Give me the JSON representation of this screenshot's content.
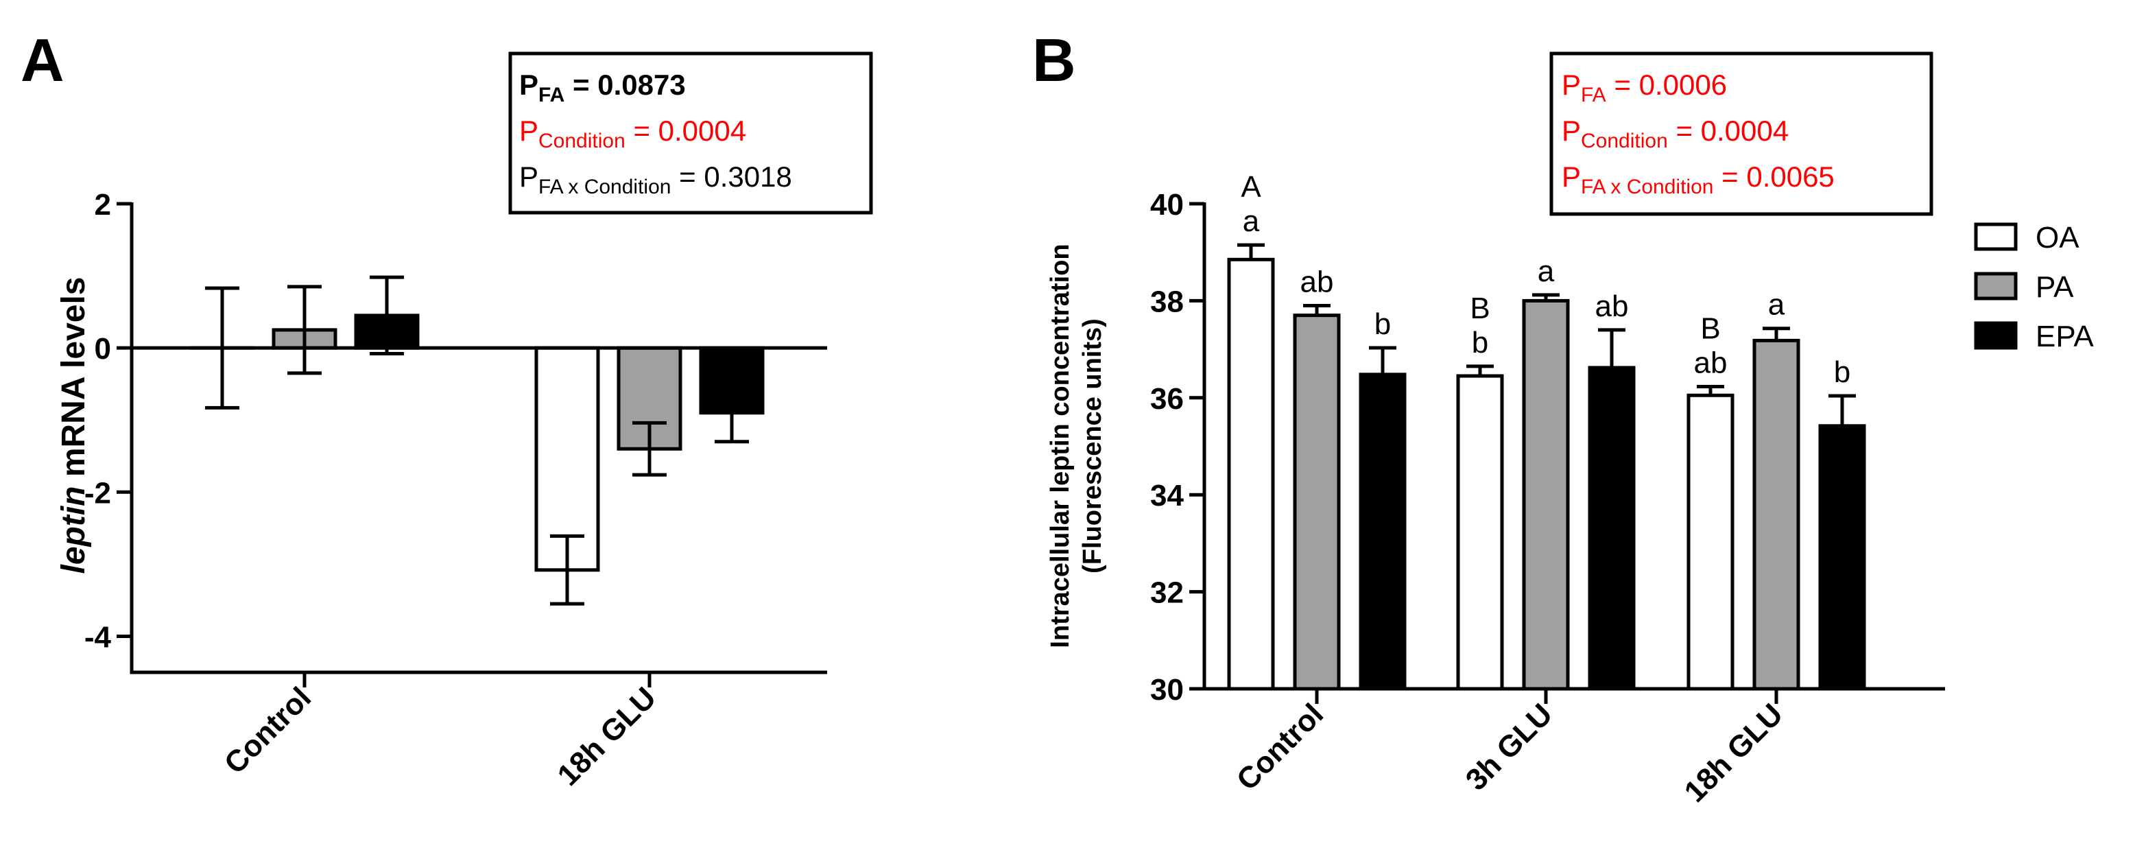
{
  "colors": {
    "OA": "#ffffff",
    "PA": "#a0a0a2",
    "EPA": "#000000",
    "axis": "#000000",
    "significant": "#ff0000",
    "nonsignificant": "#000000"
  },
  "legend": {
    "items": [
      {
        "name": "OA",
        "label": "OA"
      },
      {
        "name": "PA",
        "label": "PA"
      },
      {
        "name": "EPA",
        "label": "EPA"
      }
    ],
    "position": "right"
  },
  "chart_data": [
    {
      "panel": "A",
      "type": "bar",
      "title": "",
      "ylabel_italic": "leptin",
      "ylabel_rest": " mRNA levels",
      "xlabel": "",
      "ylim": [
        -4.5,
        2
      ],
      "yticks": [
        2,
        0,
        -2,
        -4
      ],
      "ytick_labels": [
        "2",
        "0",
        "-2",
        "-4"
      ],
      "categories": [
        "Control",
        "18h GLU"
      ],
      "series": [
        {
          "name": "OA",
          "values": [
            0.0,
            -3.08
          ],
          "errors": [
            0.83,
            0.47
          ]
        },
        {
          "name": "PA",
          "values": [
            0.25,
            -1.4
          ],
          "errors": [
            0.6,
            0.36
          ]
        },
        {
          "name": "EPA",
          "values": [
            0.45,
            -0.9
          ],
          "errors": [
            0.53,
            0.4
          ]
        }
      ],
      "stats": [
        {
          "p": "P",
          "sub": "FA",
          "value": " = 0.0873",
          "bold": true,
          "significant": false
        },
        {
          "p": "P",
          "sub": "Condition",
          "value": " = 0.0004",
          "bold": false,
          "significant": true
        },
        {
          "p": "P",
          "sub": "FA x Condition",
          "value": " = 0.3018",
          "bold": false,
          "significant": false
        }
      ]
    },
    {
      "panel": "B",
      "type": "bar",
      "title": "",
      "ylabel_line1": "Intracellular leptin concentration",
      "ylabel_line2": "(Fluorescence units)",
      "xlabel": "",
      "ylim": [
        30,
        40
      ],
      "yticks": [
        30,
        32,
        34,
        36,
        38,
        40
      ],
      "ytick_labels": [
        "30",
        "32",
        "34",
        "36",
        "38",
        "40"
      ],
      "categories": [
        "Control",
        "3h GLU",
        "18h GLU"
      ],
      "series": [
        {
          "name": "OA",
          "values": [
            38.85,
            36.45,
            36.05
          ],
          "errors": [
            0.3,
            0.2,
            0.18
          ]
        },
        {
          "name": "PA",
          "values": [
            37.7,
            38.0,
            37.18
          ],
          "errors": [
            0.2,
            0.12,
            0.25
          ]
        },
        {
          "name": "EPA",
          "values": [
            36.48,
            36.62,
            35.42
          ],
          "errors": [
            0.55,
            0.78,
            0.62
          ]
        }
      ],
      "letters": [
        {
          "category": 0,
          "series": 0,
          "upper": "A",
          "lower": "a"
        },
        {
          "category": 0,
          "series": 1,
          "upper": "",
          "lower": "ab"
        },
        {
          "category": 0,
          "series": 2,
          "upper": "",
          "lower": "b"
        },
        {
          "category": 1,
          "series": 0,
          "upper": "B",
          "lower": "b"
        },
        {
          "category": 1,
          "series": 1,
          "upper": "",
          "lower": "a"
        },
        {
          "category": 1,
          "series": 2,
          "upper": "",
          "lower": "ab"
        },
        {
          "category": 2,
          "series": 0,
          "upper": "B",
          "lower": "ab"
        },
        {
          "category": 2,
          "series": 1,
          "upper": "",
          "lower": "a"
        },
        {
          "category": 2,
          "series": 2,
          "upper": "",
          "lower": "b"
        }
      ],
      "stats": [
        {
          "p": "P",
          "sub": "FA",
          "value": " = 0.0006",
          "bold": false,
          "significant": true
        },
        {
          "p": "P",
          "sub": "Condition",
          "value": " = 0.0004",
          "bold": false,
          "significant": true
        },
        {
          "p": "P",
          "sub": "FA x Condition",
          "value": " = 0.0065",
          "bold": false,
          "significant": true
        }
      ]
    }
  ]
}
